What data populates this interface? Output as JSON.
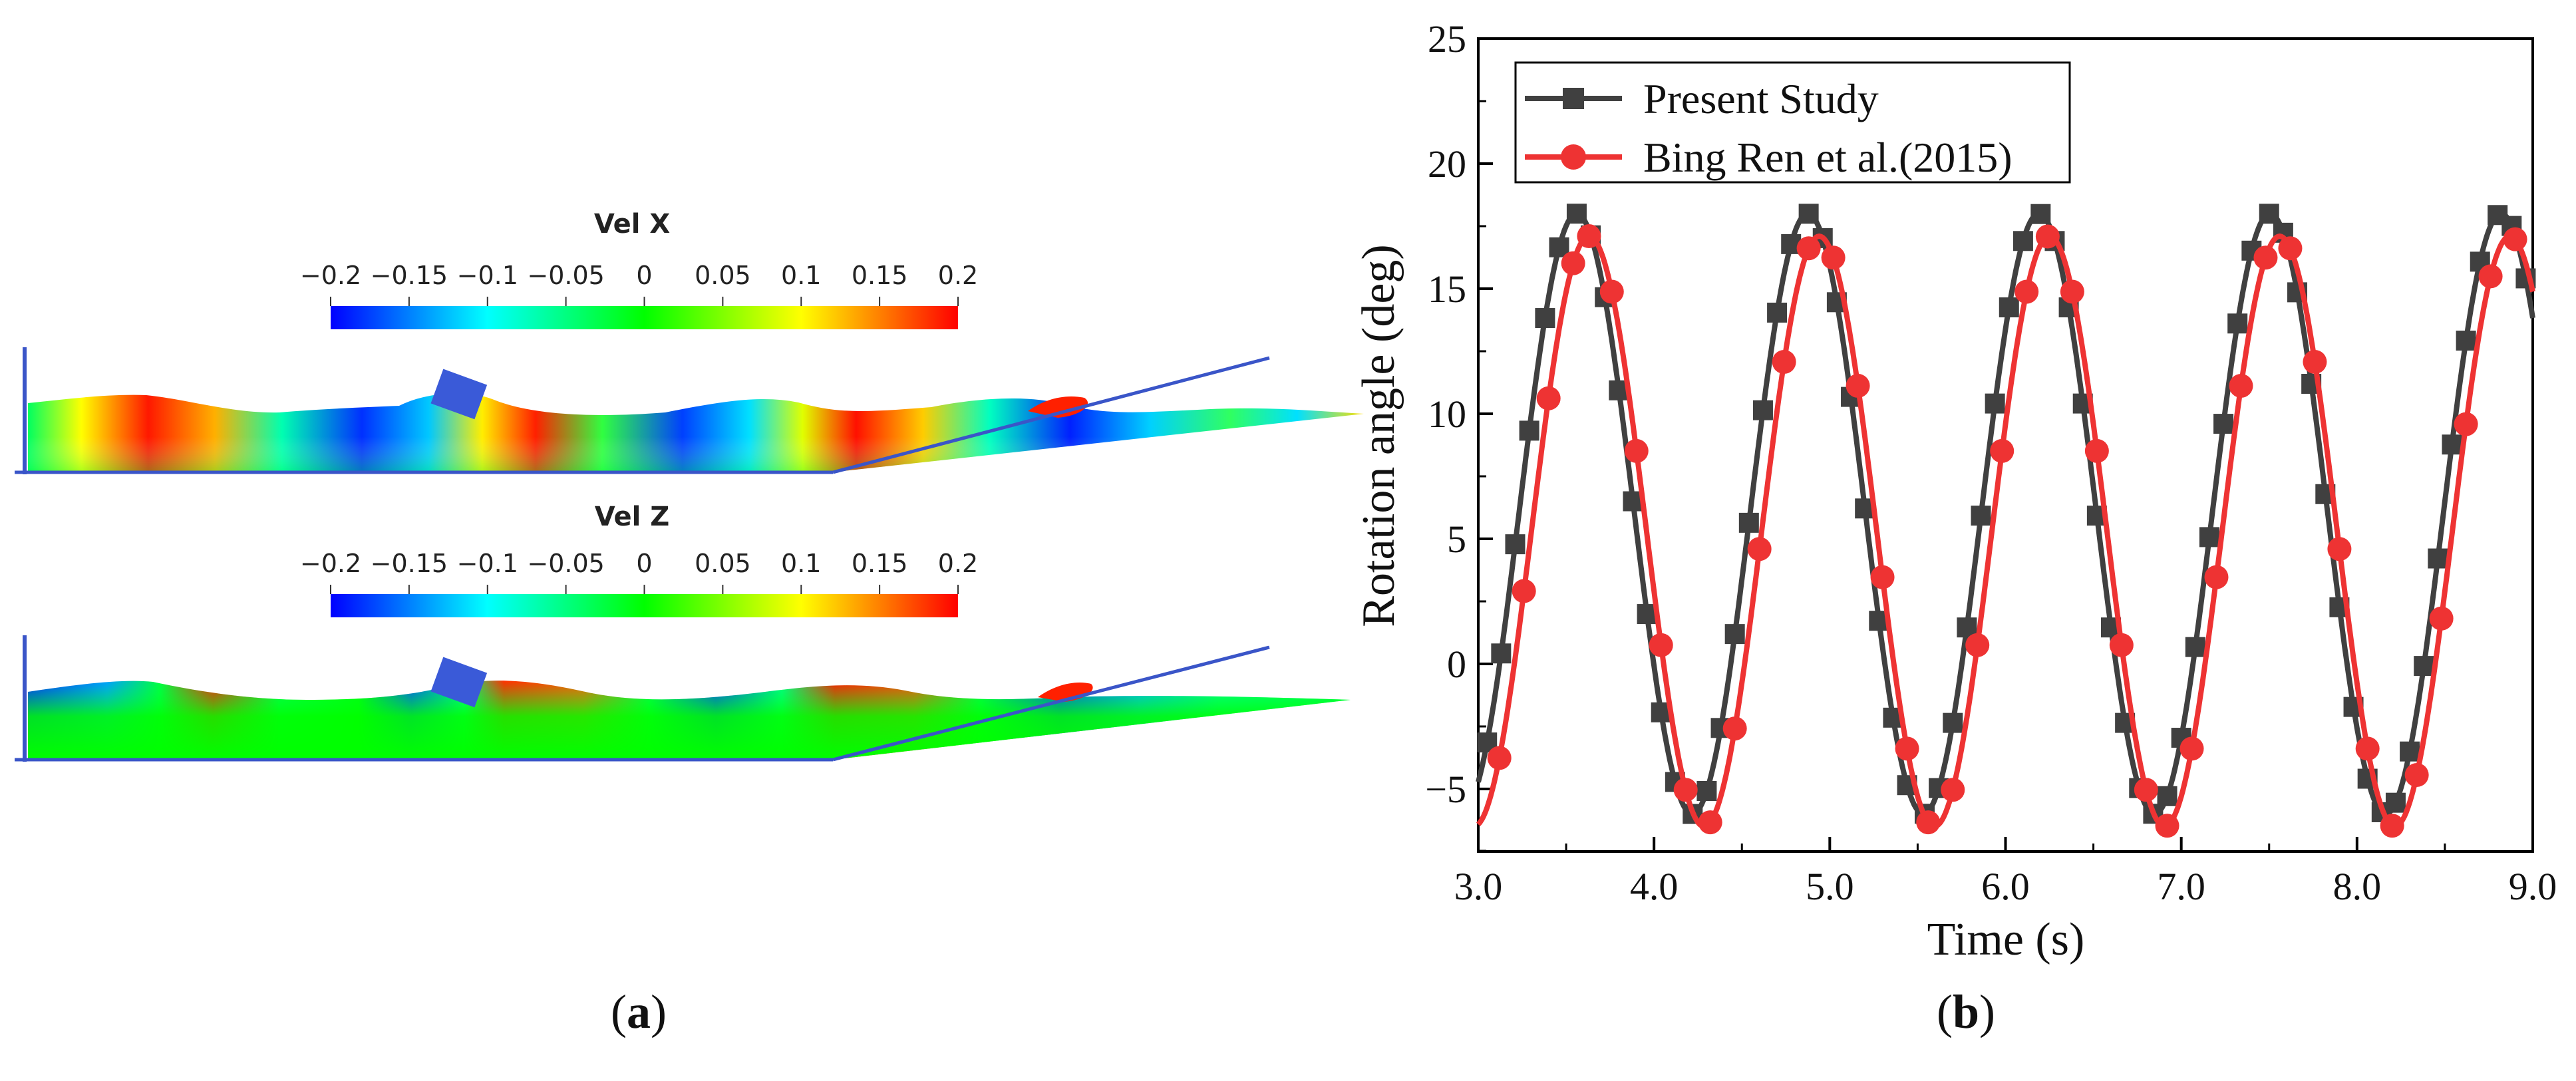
{
  "panel_a": {
    "label_open": "(",
    "label_letter": "a",
    "label_close": ")",
    "top_field": {
      "title": "Vel X",
      "ticks": [
        "−0.2",
        "−0.15",
        "−0.1",
        "−0.05",
        "0",
        "0.05",
        "0.1",
        "0.15",
        "0.2"
      ]
    },
    "bottom_field": {
      "title": "Vel Z",
      "ticks": [
        "−0.2",
        "−0.15",
        "−0.1",
        "−0.05",
        "0",
        "0.05",
        "0.1",
        "0.15",
        "0.2"
      ]
    },
    "colormap": [
      "#0000ff",
      "#0080ff",
      "#00ffff",
      "#00ff80",
      "#00ff00",
      "#80ff00",
      "#ffff00",
      "#ff8000",
      "#ff0000"
    ]
  },
  "panel_b": {
    "label_open": "(",
    "label_letter": "b",
    "label_close": ")"
  },
  "chart_data": {
    "type": "line",
    "title": "",
    "xlabel": "Time (s)",
    "ylabel": "Rotation angle (deg)",
    "xlim": [
      3.0,
      9.0
    ],
    "ylim": [
      -7.5,
      25
    ],
    "xticks": [
      3.0,
      4.0,
      5.0,
      6.0,
      7.0,
      8.0,
      9.0
    ],
    "xtick_labels": [
      "3.0",
      "4.0",
      "5.0",
      "6.0",
      "7.0",
      "8.0",
      "9.0"
    ],
    "yticks": [
      -5,
      0,
      5,
      10,
      15,
      20,
      25
    ],
    "ytick_labels": [
      "−5",
      "0",
      "5",
      "10",
      "15",
      "20",
      "25"
    ],
    "legend_position": "top-left",
    "series": [
      {
        "name": "Present Study",
        "color": "#404040",
        "marker": "square",
        "mean": 6.0,
        "amplitude": 12.0,
        "period": 1.315,
        "peak_time": 3.56,
        "marker_x": [
          3.05,
          3.13,
          3.21,
          3.29,
          3.38,
          3.46,
          3.56,
          3.64,
          3.72,
          3.8,
          3.88,
          3.96,
          4.04,
          4.12,
          4.22,
          4.3,
          4.38,
          4.46,
          4.54,
          4.62,
          4.7,
          4.78,
          4.88,
          4.96,
          5.04,
          5.12,
          5.2,
          5.28,
          5.36,
          5.44,
          5.54,
          5.62,
          5.7,
          5.78,
          5.86,
          5.94,
          6.02,
          6.1,
          6.2,
          6.28,
          6.36,
          6.44,
          6.52,
          6.6,
          6.68,
          6.76,
          6.84,
          6.92,
          7.0,
          7.08,
          7.16,
          7.24,
          7.32,
          7.4,
          7.5,
          7.58,
          7.66,
          7.74,
          7.82,
          7.9,
          7.98,
          8.06,
          8.14,
          8.22,
          8.3,
          8.38,
          8.46,
          8.54,
          8.62,
          8.7,
          8.8,
          8.88,
          8.96
        ]
      },
      {
        "name": "Bing Ren et al.(2015)",
        "color": "#ee3333",
        "marker": "circle",
        "mean": 5.3,
        "amplitude": 11.8,
        "period": 1.31,
        "peak_time": 3.63,
        "marker_x": [
          3.12,
          3.26,
          3.4,
          3.54,
          3.63,
          3.76,
          3.9,
          4.04,
          4.18,
          4.32,
          4.46,
          4.6,
          4.74,
          4.88,
          5.02,
          5.16,
          5.3,
          5.44,
          5.56,
          5.7,
          5.84,
          5.98,
          6.12,
          6.24,
          6.38,
          6.52,
          6.66,
          6.8,
          6.92,
          7.06,
          7.2,
          7.34,
          7.48,
          7.62,
          7.76,
          7.9,
          8.06,
          8.2,
          8.34,
          8.48,
          8.62,
          8.76,
          8.9
        ]
      }
    ]
  }
}
